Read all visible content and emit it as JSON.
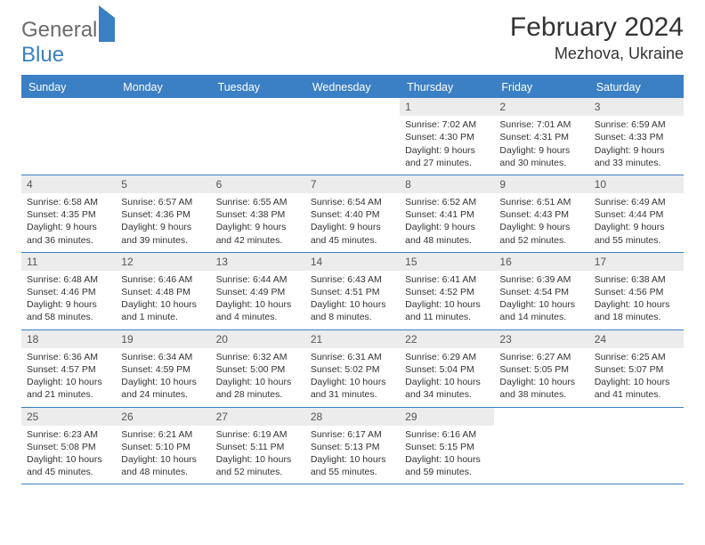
{
  "logo": {
    "text1": "General",
    "text2": "Blue"
  },
  "title": "February 2024",
  "location": "Mezhova, Ukraine",
  "dow": [
    "Sunday",
    "Monday",
    "Tuesday",
    "Wednesday",
    "Thursday",
    "Friday",
    "Saturday"
  ],
  "colors": {
    "accent": "#3b7fc4",
    "daynum_bg": "#ececec",
    "text": "#333333",
    "logo_gray": "#6b6b6b"
  },
  "weeks": [
    [
      {
        "n": "",
        "empty": true
      },
      {
        "n": "",
        "empty": true
      },
      {
        "n": "",
        "empty": true
      },
      {
        "n": "",
        "empty": true
      },
      {
        "n": "1",
        "sunrise": "7:02 AM",
        "sunset": "4:30 PM",
        "daylight": "9 hours and 27 minutes."
      },
      {
        "n": "2",
        "sunrise": "7:01 AM",
        "sunset": "4:31 PM",
        "daylight": "9 hours and 30 minutes."
      },
      {
        "n": "3",
        "sunrise": "6:59 AM",
        "sunset": "4:33 PM",
        "daylight": "9 hours and 33 minutes."
      }
    ],
    [
      {
        "n": "4",
        "sunrise": "6:58 AM",
        "sunset": "4:35 PM",
        "daylight": "9 hours and 36 minutes."
      },
      {
        "n": "5",
        "sunrise": "6:57 AM",
        "sunset": "4:36 PM",
        "daylight": "9 hours and 39 minutes."
      },
      {
        "n": "6",
        "sunrise": "6:55 AM",
        "sunset": "4:38 PM",
        "daylight": "9 hours and 42 minutes."
      },
      {
        "n": "7",
        "sunrise": "6:54 AM",
        "sunset": "4:40 PM",
        "daylight": "9 hours and 45 minutes."
      },
      {
        "n": "8",
        "sunrise": "6:52 AM",
        "sunset": "4:41 PM",
        "daylight": "9 hours and 48 minutes."
      },
      {
        "n": "9",
        "sunrise": "6:51 AM",
        "sunset": "4:43 PM",
        "daylight": "9 hours and 52 minutes."
      },
      {
        "n": "10",
        "sunrise": "6:49 AM",
        "sunset": "4:44 PM",
        "daylight": "9 hours and 55 minutes."
      }
    ],
    [
      {
        "n": "11",
        "sunrise": "6:48 AM",
        "sunset": "4:46 PM",
        "daylight": "9 hours and 58 minutes."
      },
      {
        "n": "12",
        "sunrise": "6:46 AM",
        "sunset": "4:48 PM",
        "daylight": "10 hours and 1 minute."
      },
      {
        "n": "13",
        "sunrise": "6:44 AM",
        "sunset": "4:49 PM",
        "daylight": "10 hours and 4 minutes."
      },
      {
        "n": "14",
        "sunrise": "6:43 AM",
        "sunset": "4:51 PM",
        "daylight": "10 hours and 8 minutes."
      },
      {
        "n": "15",
        "sunrise": "6:41 AM",
        "sunset": "4:52 PM",
        "daylight": "10 hours and 11 minutes."
      },
      {
        "n": "16",
        "sunrise": "6:39 AM",
        "sunset": "4:54 PM",
        "daylight": "10 hours and 14 minutes."
      },
      {
        "n": "17",
        "sunrise": "6:38 AM",
        "sunset": "4:56 PM",
        "daylight": "10 hours and 18 minutes."
      }
    ],
    [
      {
        "n": "18",
        "sunrise": "6:36 AM",
        "sunset": "4:57 PM",
        "daylight": "10 hours and 21 minutes."
      },
      {
        "n": "19",
        "sunrise": "6:34 AM",
        "sunset": "4:59 PM",
        "daylight": "10 hours and 24 minutes."
      },
      {
        "n": "20",
        "sunrise": "6:32 AM",
        "sunset": "5:00 PM",
        "daylight": "10 hours and 28 minutes."
      },
      {
        "n": "21",
        "sunrise": "6:31 AM",
        "sunset": "5:02 PM",
        "daylight": "10 hours and 31 minutes."
      },
      {
        "n": "22",
        "sunrise": "6:29 AM",
        "sunset": "5:04 PM",
        "daylight": "10 hours and 34 minutes."
      },
      {
        "n": "23",
        "sunrise": "6:27 AM",
        "sunset": "5:05 PM",
        "daylight": "10 hours and 38 minutes."
      },
      {
        "n": "24",
        "sunrise": "6:25 AM",
        "sunset": "5:07 PM",
        "daylight": "10 hours and 41 minutes."
      }
    ],
    [
      {
        "n": "25",
        "sunrise": "6:23 AM",
        "sunset": "5:08 PM",
        "daylight": "10 hours and 45 minutes."
      },
      {
        "n": "26",
        "sunrise": "6:21 AM",
        "sunset": "5:10 PM",
        "daylight": "10 hours and 48 minutes."
      },
      {
        "n": "27",
        "sunrise": "6:19 AM",
        "sunset": "5:11 PM",
        "daylight": "10 hours and 52 minutes."
      },
      {
        "n": "28",
        "sunrise": "6:17 AM",
        "sunset": "5:13 PM",
        "daylight": "10 hours and 55 minutes."
      },
      {
        "n": "29",
        "sunrise": "6:16 AM",
        "sunset": "5:15 PM",
        "daylight": "10 hours and 59 minutes."
      },
      {
        "n": "",
        "empty": true
      },
      {
        "n": "",
        "empty": true
      }
    ]
  ],
  "labels": {
    "sunrise": "Sunrise:",
    "sunset": "Sunset:",
    "daylight": "Daylight:"
  }
}
